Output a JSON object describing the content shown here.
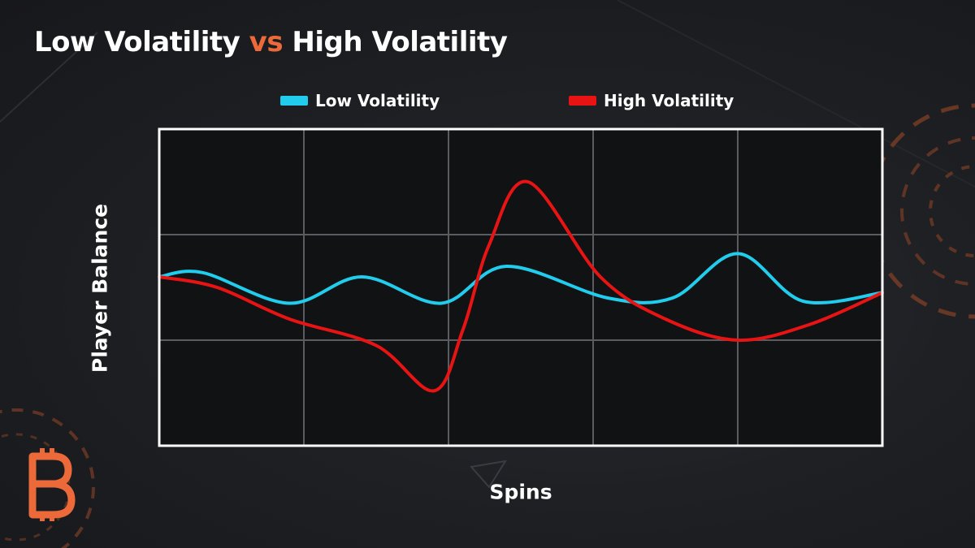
{
  "title": {
    "part1": "Low Volatility",
    "part2": "vs",
    "part3": "High Volatility"
  },
  "colors": {
    "low": "#22ccec",
    "high": "#e81414",
    "accent": "#ec6a3a",
    "grid": "#5a5c61",
    "frame": "#ffffff"
  },
  "chart_data": {
    "type": "line",
    "title": "Low Volatility vs High Volatility",
    "xlabel": "Spins",
    "ylabel": "Player Balance",
    "xlim": [
      0,
      5
    ],
    "ylim": [
      0,
      3
    ],
    "grid": true,
    "legend_position": "top",
    "ticks_labeled": false,
    "series": [
      {
        "name": "Low Volatility",
        "color": "#22ccec",
        "points": [
          [
            0,
            1.6
          ],
          [
            0.3,
            1.64
          ],
          [
            0.9,
            1.35
          ],
          [
            1.4,
            1.6
          ],
          [
            1.95,
            1.35
          ],
          [
            2.4,
            1.7
          ],
          [
            3.1,
            1.4
          ],
          [
            3.55,
            1.4
          ],
          [
            4.0,
            1.82
          ],
          [
            4.45,
            1.37
          ],
          [
            5.0,
            1.45
          ]
        ]
      },
      {
        "name": "High Volatility",
        "color": "#e81414",
        "points": [
          [
            0,
            1.6
          ],
          [
            0.4,
            1.5
          ],
          [
            0.9,
            1.2
          ],
          [
            1.5,
            0.95
          ],
          [
            1.9,
            0.52
          ],
          [
            2.1,
            1.1
          ],
          [
            2.28,
            1.9
          ],
          [
            2.55,
            2.5
          ],
          [
            3.05,
            1.6
          ],
          [
            3.5,
            1.2
          ],
          [
            4.0,
            1.0
          ],
          [
            4.5,
            1.15
          ],
          [
            5.0,
            1.45
          ]
        ]
      }
    ]
  }
}
